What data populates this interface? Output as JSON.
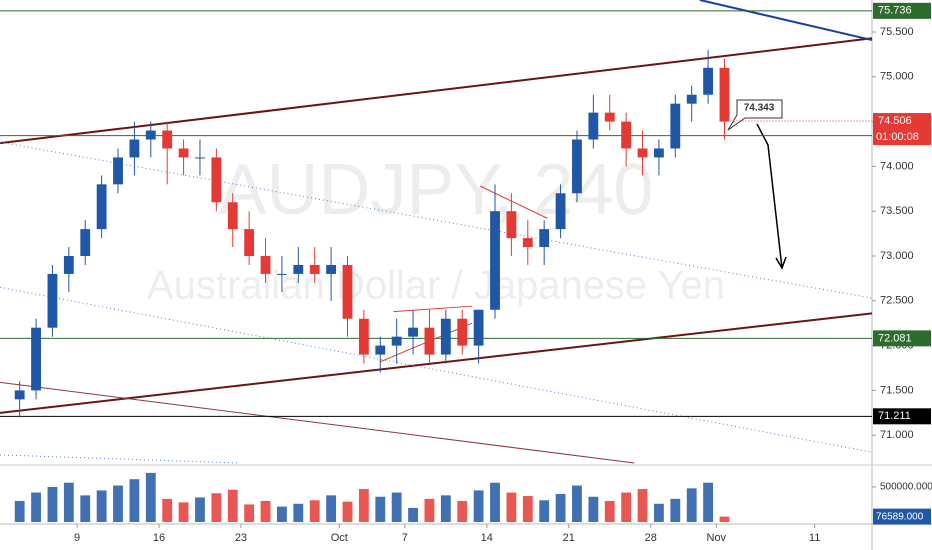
{
  "chart_data": {
    "type": "candlestick",
    "title": "AUDJPY, 240",
    "subtitle": "Australian Dollar / Japanese Yen",
    "up_color": "#2157a7",
    "down_color": "#e53935",
    "x": [
      1,
      2,
      3,
      4,
      5,
      6,
      7,
      8,
      9,
      10,
      11,
      12,
      13,
      14,
      15,
      16,
      17,
      18,
      19,
      20,
      21,
      22,
      23,
      24,
      25,
      26,
      27,
      28,
      29,
      30,
      31,
      32,
      33,
      34,
      35,
      36,
      37,
      38,
      39,
      40,
      41,
      42,
      43,
      44
    ],
    "open": [
      71.4,
      71.5,
      72.2,
      72.8,
      73.0,
      73.3,
      73.8,
      74.1,
      74.3,
      74.4,
      74.2,
      74.1,
      74.1,
      73.6,
      73.3,
      73.0,
      72.8,
      72.8,
      72.9,
      72.8,
      72.9,
      72.3,
      71.9,
      72.0,
      72.1,
      72.2,
      71.9,
      72.3,
      72.0,
      72.4,
      73.5,
      73.2,
      73.1,
      73.3,
      73.7,
      74.3,
      74.6,
      74.5,
      74.2,
      74.1,
      74.2,
      74.7,
      74.8,
      75.1
    ],
    "high": [
      71.6,
      72.3,
      72.9,
      73.1,
      73.4,
      73.9,
      74.2,
      74.5,
      74.5,
      74.5,
      74.3,
      74.3,
      74.2,
      73.7,
      73.5,
      73.2,
      73.0,
      73.1,
      73.1,
      73.1,
      73.0,
      72.4,
      72.1,
      72.3,
      72.4,
      72.4,
      72.4,
      72.4,
      72.4,
      73.8,
      73.7,
      73.4,
      73.4,
      73.8,
      74.4,
      74.8,
      74.8,
      74.6,
      74.4,
      74.3,
      74.8,
      74.9,
      75.3,
      75.2
    ],
    "low": [
      71.2,
      71.4,
      72.1,
      72.6,
      72.9,
      73.2,
      73.7,
      73.9,
      74.1,
      73.8,
      73.9,
      73.9,
      73.5,
      73.1,
      72.9,
      72.7,
      72.6,
      72.7,
      72.7,
      72.5,
      72.1,
      71.8,
      71.7,
      71.8,
      71.9,
      71.8,
      71.8,
      71.9,
      71.8,
      72.3,
      73.0,
      72.9,
      72.9,
      73.2,
      73.6,
      74.2,
      74.4,
      74.0,
      73.9,
      73.9,
      74.1,
      74.5,
      74.7,
      74.3
    ],
    "close": [
      71.5,
      72.2,
      72.8,
      73.0,
      73.3,
      73.8,
      74.1,
      74.3,
      74.4,
      74.2,
      74.1,
      74.1,
      73.6,
      73.3,
      73.0,
      72.8,
      72.8,
      72.9,
      72.8,
      72.9,
      72.3,
      71.9,
      72.0,
      72.1,
      72.2,
      71.9,
      72.3,
      72.0,
      72.4,
      73.5,
      73.2,
      73.1,
      73.3,
      73.7,
      74.3,
      74.6,
      74.5,
      74.2,
      74.1,
      74.2,
      74.7,
      74.8,
      75.1,
      74.5
    ],
    "volume": [
      300000,
      420000,
      500000,
      560000,
      380000,
      450000,
      520000,
      610000,
      700000,
      330000,
      280000,
      350000,
      410000,
      460000,
      250000,
      300000,
      220000,
      260000,
      310000,
      380000,
      290000,
      470000,
      360000,
      420000,
      200000,
      330000,
      380000,
      300000,
      450000,
      560000,
      420000,
      370000,
      310000,
      400000,
      520000,
      360000,
      300000,
      420000,
      470000,
      260000,
      330000,
      480000,
      560000,
      76589
    ],
    "last_volume": {
      "value": 76589,
      "label": "76589.000"
    },
    "xlim": [
      0.3,
      53.5
    ],
    "xticks": [
      {
        "value": 5,
        "label": "9"
      },
      {
        "value": 10,
        "label": "16"
      },
      {
        "value": 15,
        "label": "23"
      },
      {
        "value": 21,
        "label": "Oct"
      },
      {
        "value": 25,
        "label": "7"
      },
      {
        "value": 30,
        "label": "14"
      },
      {
        "value": 35,
        "label": "21"
      },
      {
        "value": 40,
        "label": "28"
      },
      {
        "value": 44,
        "label": "Nov"
      },
      {
        "value": 50,
        "label": "11"
      }
    ],
    "ylim": [
      70.69,
      75.857
    ],
    "yticks": [
      {
        "value": 71,
        "label": "71.000"
      },
      {
        "value": 71.5,
        "label": "71.500"
      },
      {
        "value": 72,
        "label": "72.000"
      },
      {
        "value": 72.5,
        "label": "72.500"
      },
      {
        "value": 73,
        "label": "73.000"
      },
      {
        "value": 73.5,
        "label": "73.500"
      },
      {
        "value": 74,
        "label": "74.000"
      },
      {
        "value": 74.5,
        "label": "74.500"
      },
      {
        "value": 75,
        "label": "75.000"
      },
      {
        "value": 75.5,
        "label": "75.500"
      }
    ],
    "vlim": [
      0,
      770000
    ],
    "vticks": [
      {
        "value": 500000,
        "label": "500000.000"
      }
    ],
    "levels": [
      {
        "value": 75.736,
        "color": "#2e6b2e"
      },
      {
        "value": 72.081,
        "color": "#2e6b2e"
      },
      {
        "value": 71.211,
        "color": "#000000"
      }
    ],
    "callout_level": 74.343,
    "callout_color": "#2e6b2e",
    "last_price": 74.506,
    "countdown": "01:00:08",
    "lines": [
      {
        "x": [
          0.3,
          53.5
        ],
        "y": [
          74.26,
          75.43
        ],
        "color": "#6b1414",
        "width": 2,
        "dotted": false
      },
      {
        "x": [
          0.3,
          53.5
        ],
        "y": [
          71.25,
          72.36
        ],
        "color": "#6b1414",
        "width": 2,
        "dotted": false
      },
      {
        "x": [
          43.0,
          53.5
        ],
        "y": [
          75.857,
          75.41
        ],
        "color": "#1a3fa0",
        "width": 2,
        "dotted": false
      },
      {
        "x": [
          0.3,
          53.5
        ],
        "y": [
          74.27,
          72.53
        ],
        "color": "#5b7fc4",
        "width": 1,
        "dotted": true
      },
      {
        "x": [
          0.3,
          53.5
        ],
        "y": [
          72.65,
          70.81
        ],
        "color": "#5b7fc4",
        "width": 1,
        "dotted": true
      },
      {
        "x": [
          0.3,
          14.9
        ],
        "y": [
          70.78,
          70.69
        ],
        "color": "#5b7fc4",
        "width": 1,
        "dotted": true
      },
      {
        "x": [
          0.3,
          39.0
        ],
        "y": [
          71.59,
          70.69
        ],
        "color": "#8a3a3a",
        "width": 1,
        "dotted": false
      },
      {
        "x": [
          29.6,
          33.7
        ],
        "y": [
          73.78,
          73.42
        ],
        "color": "#e53935",
        "width": 1,
        "dotted": false
      },
      {
        "x": [
          24.3,
          29.1
        ],
        "y": [
          72.38,
          72.44
        ],
        "color": "#e53935",
        "width": 1,
        "dotted": false
      },
      {
        "x": [
          23.5,
          29.1
        ],
        "y": [
          71.82,
          72.25
        ],
        "color": "#e53935",
        "width": 1,
        "dotted": false
      }
    ]
  }
}
